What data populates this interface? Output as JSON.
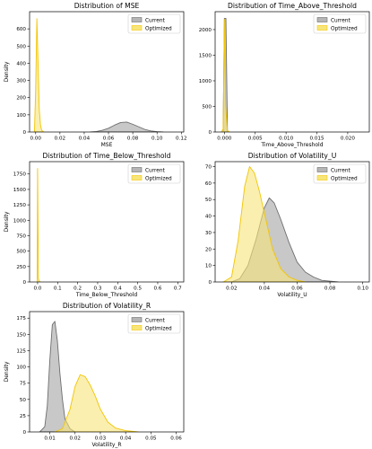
{
  "colors": {
    "current_fill": "#b5b5b5",
    "current_edge": "#6e6e6e",
    "optimized_fill": "#f7e57a",
    "optimized_edge": "#f2c500",
    "axis": "#000000"
  },
  "legend": {
    "current": "Current",
    "optimized": "Optimized"
  },
  "chart_data": [
    {
      "type": "histogram",
      "title": "Distribution of MSE",
      "xlabel": "MSE",
      "ylabel": "Density",
      "xlim": [
        -0.005,
        0.122
      ],
      "ylim": [
        0,
        700
      ],
      "xticks": [
        "0.00",
        "0.02",
        "0.04",
        "0.06",
        "0.08",
        "0.10",
        "0.12"
      ],
      "xtick_values": [
        0.0,
        0.02,
        0.04,
        0.06,
        0.08,
        0.1,
        0.12
      ],
      "yticks": [
        0,
        100,
        200,
        300,
        400,
        500,
        600
      ],
      "legend_position": "top-right",
      "series": [
        {
          "name": "Current",
          "x": [
            0.045,
            0.05,
            0.055,
            0.06,
            0.065,
            0.07,
            0.075,
            0.08,
            0.085,
            0.09,
            0.095,
            0.1,
            0.105
          ],
          "y": [
            0,
            3,
            10,
            22,
            40,
            55,
            58,
            45,
            30,
            15,
            6,
            2,
            0
          ]
        },
        {
          "name": "Optimized",
          "x": [
            -0.001,
            0.0,
            0.001,
            0.002,
            0.003,
            0.004,
            0.005,
            0.006,
            0.007
          ],
          "y": [
            0,
            240,
            660,
            400,
            130,
            40,
            10,
            3,
            0
          ]
        }
      ]
    },
    {
      "type": "histogram",
      "title": "Distribution of Time_Above_Threshold",
      "xlabel": "Time_Above_Threshold",
      "ylabel": "",
      "xlim": [
        -0.0015,
        0.0235
      ],
      "ylim": [
        0,
        2350
      ],
      "xticks": [
        "0.000",
        "0.005",
        "0.010",
        "0.015",
        "0.020"
      ],
      "xtick_values": [
        0.0,
        0.005,
        0.01,
        0.015,
        0.02
      ],
      "yticks": [
        0,
        500,
        1000,
        1500,
        2000
      ],
      "legend_position": "top-right",
      "series": [
        {
          "name": "Current",
          "x": [
            -0.0002,
            0.0,
            0.00025,
            0.0005
          ],
          "y": [
            0,
            2220,
            2220,
            0
          ]
        },
        {
          "name": "Optimized",
          "x": [
            -0.0005,
            -0.0002,
            0.0,
            0.0002,
            0.0005,
            0.0008
          ],
          "y": [
            0,
            60,
            2200,
            500,
            30,
            0
          ]
        }
      ]
    },
    {
      "type": "histogram",
      "title": "Distribution of Time_Below_Threshold",
      "xlabel": "Time_Below_Threshold",
      "ylabel": "Density",
      "xlim": [
        -0.04,
        0.73
      ],
      "ylim": [
        0,
        1950
      ],
      "xticks": [
        "0.0",
        "0.1",
        "0.2",
        "0.3",
        "0.4",
        "0.5",
        "0.6",
        "0.7"
      ],
      "xtick_values": [
        0.0,
        0.1,
        0.2,
        0.3,
        0.4,
        0.5,
        0.6,
        0.7
      ],
      "yticks": [
        0,
        250,
        500,
        750,
        1000,
        1250,
        1500,
        1750
      ],
      "legend_position": "top-right",
      "series": [
        {
          "name": "Current",
          "x": [],
          "y": []
        },
        {
          "name": "Optimized",
          "x": [
            -0.002,
            0.0,
            0.004,
            0.008,
            0.012,
            0.016
          ],
          "y": [
            0,
            1840,
            60,
            10,
            3,
            0
          ]
        }
      ]
    },
    {
      "type": "histogram",
      "title": "Distribution of Volatility_U",
      "xlabel": "Volatility_U",
      "ylabel": "",
      "xlim": [
        0.01,
        0.104
      ],
      "ylim": [
        0,
        73
      ],
      "xticks": [
        "0.02",
        "0.04",
        "0.06",
        "0.08",
        "0.10"
      ],
      "xtick_values": [
        0.02,
        0.04,
        0.06,
        0.08,
        0.1
      ],
      "yticks": [
        0,
        10,
        20,
        30,
        40,
        50,
        60,
        70
      ],
      "legend_position": "top-right",
      "series": [
        {
          "name": "Current",
          "x": [
            0.02,
            0.025,
            0.03,
            0.035,
            0.04,
            0.043,
            0.046,
            0.05,
            0.055,
            0.06,
            0.065,
            0.07,
            0.075,
            0.08,
            0.085
          ],
          "y": [
            0,
            2,
            10,
            26,
            45,
            51,
            48,
            38,
            24,
            12,
            6,
            3,
            1,
            0.5,
            0
          ]
        },
        {
          "name": "Optimized",
          "x": [
            0.015,
            0.02,
            0.024,
            0.028,
            0.031,
            0.034,
            0.037,
            0.04,
            0.045,
            0.05,
            0.055,
            0.06,
            0.065
          ],
          "y": [
            0,
            3,
            25,
            58,
            70,
            66,
            55,
            42,
            20,
            8,
            3,
            1,
            0
          ]
        }
      ]
    },
    {
      "type": "histogram",
      "title": "Distribution of Volatility_R",
      "xlabel": "Volatility_R",
      "ylabel": "Density",
      "xlim": [
        0.002,
        0.063
      ],
      "ylim": [
        0,
        185
      ],
      "xticks": [
        "0.01",
        "0.02",
        "0.03",
        "0.04",
        "0.05",
        "0.06"
      ],
      "xtick_values": [
        0.01,
        0.02,
        0.03,
        0.04,
        0.05,
        0.06
      ],
      "yticks": [
        0,
        25,
        50,
        75,
        100,
        125,
        150,
        175
      ],
      "legend_position": "top-right",
      "series": [
        {
          "name": "Current",
          "x": [
            0.006,
            0.008,
            0.009,
            0.01,
            0.011,
            0.012,
            0.013,
            0.014,
            0.015,
            0.016,
            0.018,
            0.02
          ],
          "y": [
            0,
            8,
            40,
            110,
            165,
            170,
            140,
            90,
            50,
            20,
            5,
            0
          ]
        },
        {
          "name": "Optimized",
          "x": [
            0.012,
            0.015,
            0.018,
            0.02,
            0.022,
            0.024,
            0.026,
            0.028,
            0.03,
            0.033,
            0.036,
            0.04,
            0.045
          ],
          "y": [
            0,
            5,
            35,
            70,
            88,
            85,
            72,
            55,
            35,
            15,
            6,
            2,
            0
          ]
        }
      ]
    }
  ]
}
